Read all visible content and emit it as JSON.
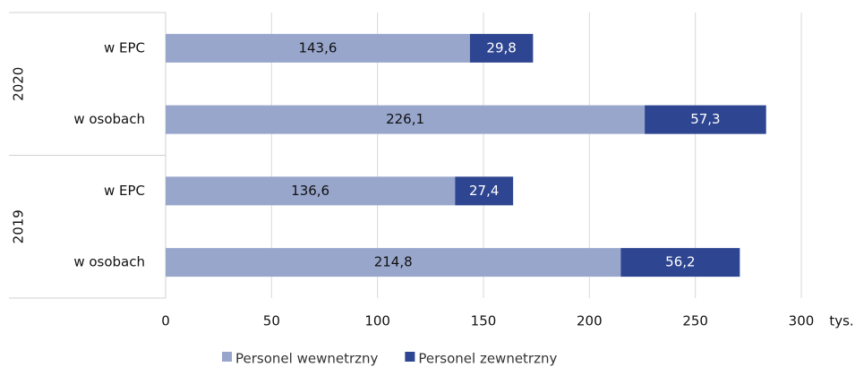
{
  "chart_data": {
    "type": "stacked-barh",
    "categories": [
      "w EPC",
      "w osobach",
      "w EPC",
      "w osobach"
    ],
    "group_labels": [
      "2020",
      "2019"
    ],
    "series": [
      {
        "name": "Personel wewnetrzny",
        "color": "#98a6cc",
        "label_color": "#111111",
        "values": [
          143.6,
          226.1,
          136.6,
          214.8
        ],
        "value_labels": [
          "143,6",
          "226,1",
          "136,6",
          "214,8"
        ]
      },
      {
        "name": "Personel zewnetrzny",
        "color": "#2e4591",
        "label_color": "#ffffff",
        "values": [
          29.8,
          57.3,
          27.4,
          56.2
        ],
        "value_labels": [
          "29,8",
          "57,3",
          "27,4",
          "56,2"
        ]
      }
    ],
    "xlim": [
      0,
      300
    ],
    "xticks": [
      0,
      50,
      100,
      150,
      200,
      250,
      300
    ],
    "x_unit": "tys.",
    "grid": true,
    "legend": "bottom"
  }
}
